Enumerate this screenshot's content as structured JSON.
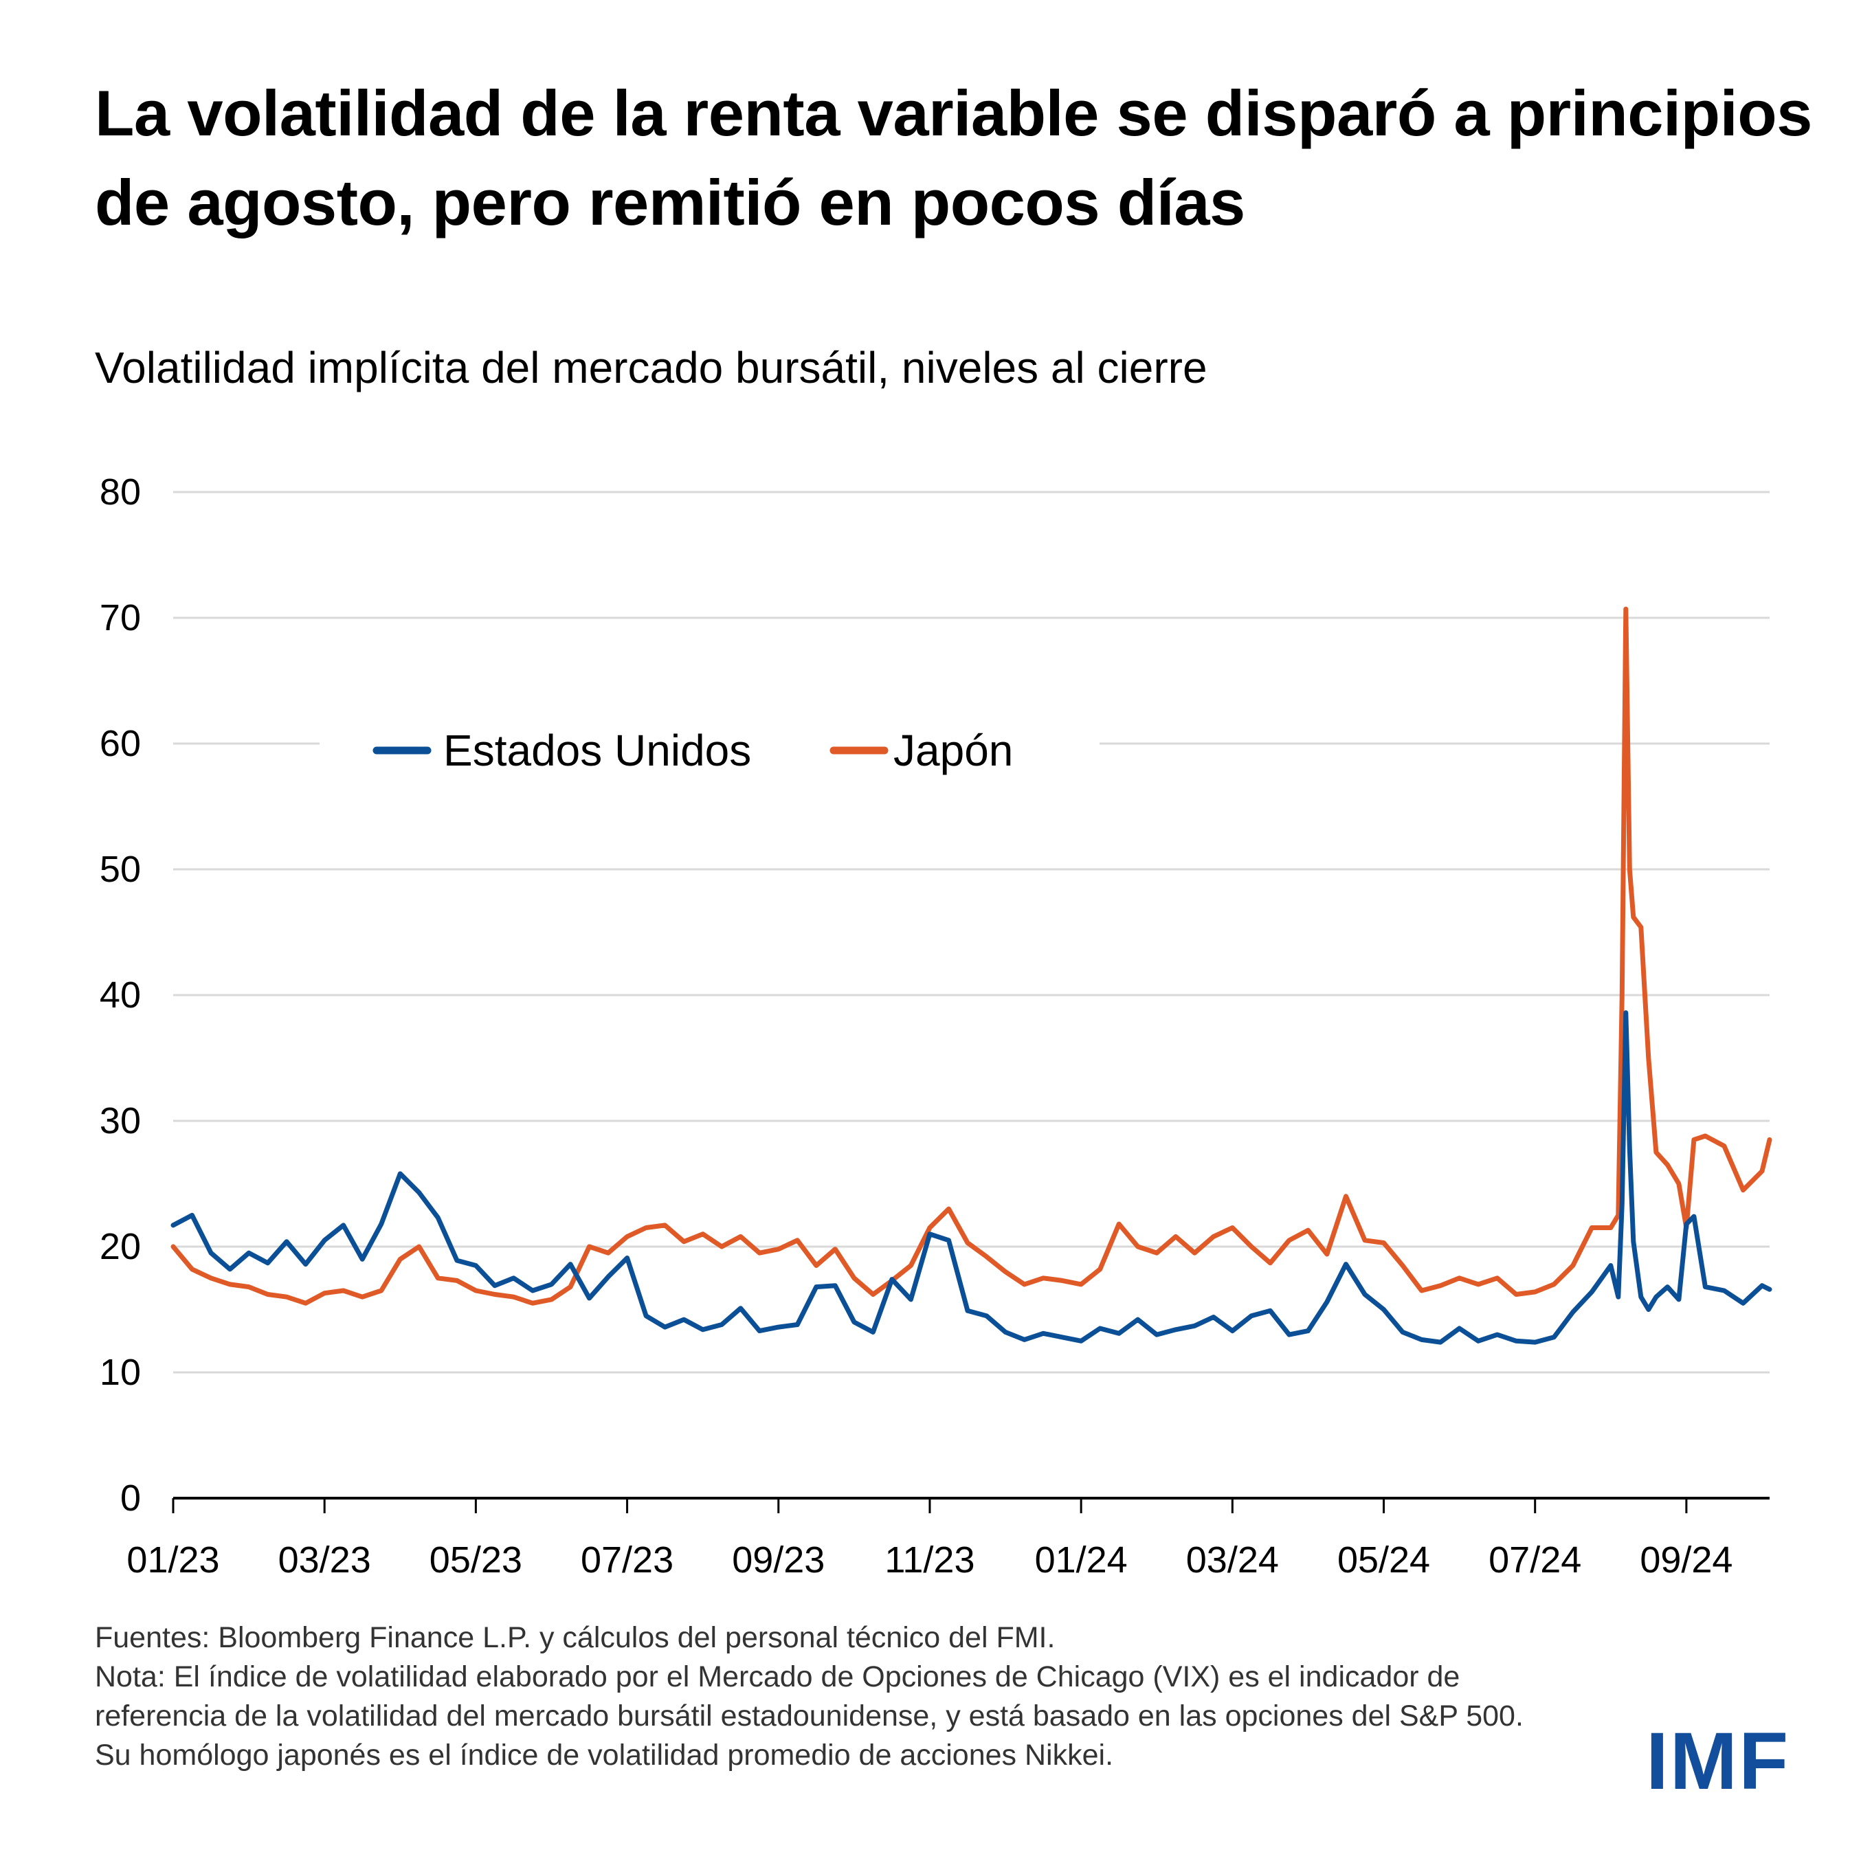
{
  "title": "La volatilidad de la renta variable se disparó a principios de agosto, pero remitió en pocos días",
  "subtitle": "Volatilidad implícita del mercado bursátil, niveles al cierre",
  "notes": {
    "sources": "Fuentes: Bloomberg Finance L.P. y cálculos del personal técnico del FMI.",
    "note": "Nota: El índice de volatilidad elaborado por el Mercado de Opciones de Chicago (VIX) es el indicador de referencia de la volatilidad del mercado bursátil estadounidense, y está basado en las opciones del S&P 500. Su homólogo japonés es el índice de volatilidad promedio de acciones Nikkei."
  },
  "logo": "IMF",
  "colors": {
    "us": "#0b5096",
    "japan": "#e05a27",
    "grid": "#d9d9d9",
    "axis": "#000000",
    "logo": "#124e9c"
  },
  "chart_data": {
    "type": "line",
    "title": "Volatilidad implícita del mercado bursátil, niveles al cierre",
    "xlabel": "",
    "ylabel": "",
    "ylim": [
      0,
      80
    ],
    "yticks": [
      0,
      10,
      20,
      30,
      40,
      50,
      60,
      70,
      80
    ],
    "grid": true,
    "legend_position": "top-left",
    "x_tick_labels": [
      "01/23",
      "03/23",
      "05/23",
      "07/23",
      "09/23",
      "11/23",
      "01/24",
      "03/24",
      "05/24",
      "07/24",
      "09/24"
    ],
    "x_tick_months": [
      0,
      2,
      4,
      6,
      8,
      10,
      12,
      14,
      16,
      18,
      20
    ],
    "xlim_months": [
      0,
      21.1
    ],
    "x_unit": "months since Jan 2023 (approximate, weekly)",
    "x": [
      0.0,
      0.25,
      0.5,
      0.75,
      1.0,
      1.25,
      1.5,
      1.75,
      2.0,
      2.25,
      2.5,
      2.75,
      3.0,
      3.25,
      3.5,
      3.75,
      4.0,
      4.25,
      4.5,
      4.75,
      5.0,
      5.25,
      5.5,
      5.75,
      6.0,
      6.25,
      6.5,
      6.75,
      7.0,
      7.25,
      7.5,
      7.75,
      8.0,
      8.25,
      8.5,
      8.75,
      9.0,
      9.25,
      9.5,
      9.75,
      10.0,
      10.25,
      10.5,
      10.75,
      11.0,
      11.25,
      11.5,
      11.75,
      12.0,
      12.25,
      12.5,
      12.75,
      13.0,
      13.25,
      13.5,
      13.75,
      14.0,
      14.25,
      14.5,
      14.75,
      15.0,
      15.25,
      15.5,
      15.75,
      16.0,
      16.25,
      16.5,
      16.75,
      17.0,
      17.25,
      17.5,
      17.75,
      18.0,
      18.25,
      18.5,
      18.75,
      19.0,
      19.1,
      19.15,
      19.2,
      19.25,
      19.3,
      19.4,
      19.5,
      19.6,
      19.75,
      19.9,
      20.0,
      20.1,
      20.25,
      20.5,
      20.75,
      21.0,
      21.1
    ],
    "series": [
      {
        "name": "Estados Unidos",
        "color": "#0b5096",
        "values": [
          21.7,
          22.5,
          19.5,
          18.2,
          19.5,
          18.7,
          20.4,
          18.6,
          20.5,
          21.7,
          19.0,
          21.8,
          25.8,
          24.3,
          22.3,
          18.9,
          18.5,
          16.9,
          17.5,
          16.5,
          17.0,
          18.6,
          15.9,
          17.6,
          19.1,
          14.5,
          13.6,
          14.2,
          13.4,
          13.8,
          15.1,
          13.3,
          13.6,
          13.8,
          16.8,
          16.9,
          14.0,
          13.2,
          17.4,
          15.8,
          21.0,
          20.5,
          14.9,
          14.5,
          13.2,
          12.6,
          13.1,
          12.8,
          12.5,
          13.5,
          13.1,
          14.2,
          13.0,
          13.4,
          13.7,
          14.4,
          13.3,
          14.5,
          14.9,
          13.0,
          13.3,
          15.6,
          18.6,
          16.2,
          15.0,
          13.2,
          12.6,
          12.4,
          13.5,
          12.5,
          13.0,
          12.5,
          12.4,
          12.8,
          14.8,
          16.4,
          18.5,
          16.0,
          23.4,
          38.6,
          27.8,
          20.4,
          16.0,
          15.0,
          16.0,
          16.8,
          15.8,
          21.8,
          22.4,
          16.8,
          16.5,
          15.5,
          16.9,
          16.6
        ]
      },
      {
        "name": "Japón",
        "color": "#e05a27",
        "values": [
          20.0,
          18.2,
          17.5,
          17.0,
          16.8,
          16.2,
          16.0,
          15.5,
          16.3,
          16.5,
          16.0,
          16.5,
          19.0,
          20.0,
          17.5,
          17.3,
          16.5,
          16.2,
          16.0,
          15.5,
          15.8,
          16.8,
          20.0,
          19.5,
          20.8,
          21.5,
          21.7,
          20.4,
          21.0,
          20.0,
          20.8,
          19.5,
          19.8,
          20.5,
          18.5,
          19.8,
          17.5,
          16.2,
          17.3,
          18.5,
          21.5,
          23.0,
          20.3,
          19.2,
          18.0,
          17.0,
          17.5,
          17.3,
          17.0,
          18.2,
          21.8,
          20.0,
          19.5,
          20.8,
          19.5,
          20.8,
          21.5,
          20.0,
          18.7,
          20.5,
          21.3,
          19.4,
          24.0,
          20.5,
          20.3,
          18.5,
          16.5,
          16.9,
          17.5,
          17.0,
          17.5,
          16.2,
          16.4,
          17.0,
          18.5,
          21.5,
          21.5,
          22.5,
          40.0,
          70.7,
          50.0,
          46.2,
          45.4,
          35.0,
          27.5,
          26.5,
          25.0,
          21.5,
          28.5,
          28.8,
          28.0,
          24.5,
          26.0,
          28.5
        ]
      }
    ]
  }
}
